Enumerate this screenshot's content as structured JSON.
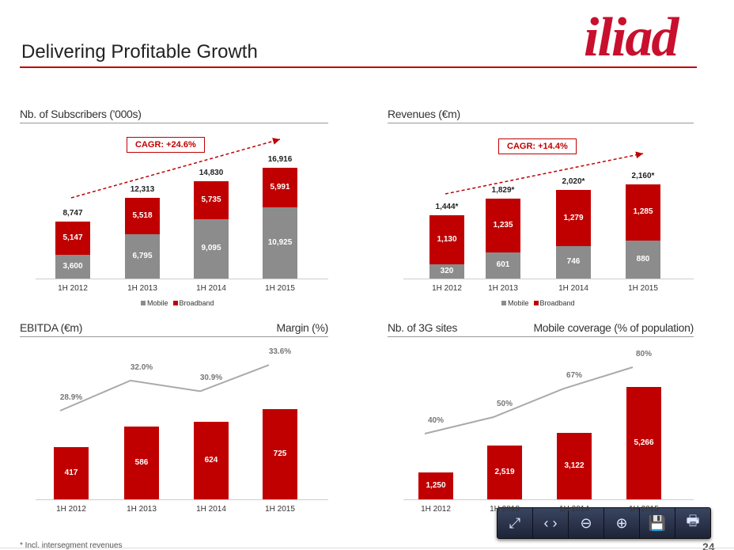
{
  "title": "Delivering Profitable Growth",
  "logo": "iliad",
  "colors": {
    "mobile": "#8c8c8c",
    "broadband": "#c00000",
    "line": "#aaaaaa"
  },
  "footnote": "* Incl. intersegment revenues",
  "page_number": "24",
  "toolbar": [
    "fit-page-icon",
    "fit-width-icon",
    "zoom-out-icon",
    "zoom-in-icon",
    "save-icon",
    "print-icon"
  ],
  "chart_data": [
    {
      "type": "bar",
      "stacked": true,
      "title": "Nb. of Subscribers ('000s)",
      "annotation": "CAGR: +24.6%",
      "categories": [
        "1H 2012",
        "1H 2013",
        "1H 2014",
        "1H 2015"
      ],
      "series": [
        {
          "name": "Mobile",
          "values": [
            3600,
            6795,
            9095,
            10925
          ]
        },
        {
          "name": "Broadband",
          "values": [
            5147,
            5518,
            5735,
            5991
          ]
        }
      ],
      "totals": [
        "8,747",
        "12,313",
        "14,830",
        "16,916"
      ],
      "legend": [
        "Mobile",
        "Broadband"
      ],
      "ylim": [
        0,
        16916
      ]
    },
    {
      "type": "bar",
      "stacked": true,
      "title": "Revenues (€m)",
      "annotation": "CAGR: +14.4%",
      "categories": [
        "1H 2012",
        "1H 2013",
        "1H 2014",
        "1H 2015"
      ],
      "series": [
        {
          "name": "Mobile",
          "values": [
            320,
            601,
            746,
            880
          ]
        },
        {
          "name": "Broadband",
          "values": [
            1130,
            1235,
            1279,
            1285
          ]
        }
      ],
      "totals": [
        "1,444*",
        "1,829*",
        "2,020*",
        "2,160*"
      ],
      "legend": [
        "Mobile",
        "Broadband"
      ],
      "ylim": [
        0,
        2160
      ]
    },
    {
      "type": "bar",
      "title": "EBITDA (€m)",
      "title_right": "Margin (%)",
      "categories": [
        "1H 2012",
        "1H 2013",
        "1H 2014",
        "1H 2015"
      ],
      "values": [
        417,
        586,
        624,
        725
      ],
      "line_values": [
        28.9,
        32.0,
        30.9,
        33.6
      ],
      "line_labels": [
        "28.9%",
        "32.0%",
        "30.9%",
        "33.6%"
      ],
      "ylim": [
        0,
        725
      ]
    },
    {
      "type": "bar",
      "title": "Nb. of 3G sites",
      "title_right": "Mobile coverage (% of population)",
      "categories": [
        "1H 2012",
        "1H 2013",
        "1H 2014",
        "1H 2015"
      ],
      "values": [
        1250,
        2519,
        3122,
        5266
      ],
      "line_values": [
        40,
        50,
        67,
        80
      ],
      "line_labels": [
        "40%",
        "50%",
        "67%",
        "80%"
      ],
      "ylim": [
        0,
        5266
      ]
    }
  ]
}
